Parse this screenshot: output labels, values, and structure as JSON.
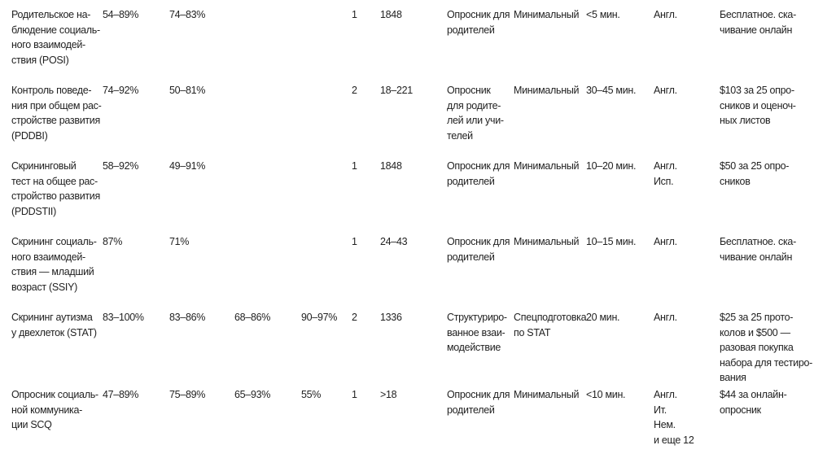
{
  "table": {
    "rows": [
      [
        [
          "Родительское на-",
          "блюдение социаль-",
          "ного взаимодей-",
          "ствия (POSI)"
        ],
        [
          "54–89%"
        ],
        [
          "74–83%"
        ],
        [],
        [],
        [
          "1"
        ],
        [
          "1848"
        ],
        [
          "Опросник для",
          "родителей"
        ],
        [
          "Минимальный"
        ],
        [
          "<5 мин."
        ],
        [
          "Англ."
        ],
        [
          "Бесплатное. ска-",
          "чивание онлайн"
        ]
      ],
      [
        [
          "Контроль поведе-",
          "ния при общем рас-",
          "стройстве развития",
          "(PDDBI)"
        ],
        [
          "74–92%"
        ],
        [
          "50–81%"
        ],
        [],
        [],
        [
          "2"
        ],
        [
          "18–221"
        ],
        [
          "Опросник",
          "для родите-",
          "лей или учи-",
          "телей"
        ],
        [
          "Минимальный"
        ],
        [
          "30–45 мин."
        ],
        [
          "Англ."
        ],
        [
          "$103 за 25 опро-",
          "сников и оценоч-",
          "ных листов"
        ]
      ],
      [
        [
          "Скрининговый",
          "тест на общее рас-",
          "стройство развития",
          "(PDDSTII)"
        ],
        [
          "58–92%"
        ],
        [
          "49–91%"
        ],
        [],
        [],
        [
          "1"
        ],
        [
          "1848"
        ],
        [
          "Опросник для",
          "родителей"
        ],
        [
          "Минимальный"
        ],
        [
          "10–20 мин."
        ],
        [
          "Англ.",
          "Исп."
        ],
        [
          "$50 за 25 опро-",
          "сников"
        ]
      ],
      [
        [
          "Скрининг социаль-",
          "ного взаимодей-",
          "ствия — младший",
          "возраст (SSIY)"
        ],
        [
          "87%"
        ],
        [
          "71%"
        ],
        [],
        [],
        [
          "1"
        ],
        [
          "24–43"
        ],
        [
          "Опросник для",
          "родителей"
        ],
        [
          "Минимальный"
        ],
        [
          "10–15 мин."
        ],
        [
          "Англ."
        ],
        [
          "Бесплатное. ска-",
          "чивание онлайн"
        ]
      ],
      [
        [
          "Скрининг аутизма",
          "у двехлеток (STAT)"
        ],
        [
          "83–100%"
        ],
        [
          "83–86%"
        ],
        [
          "68–86%"
        ],
        [
          "90–97%"
        ],
        [
          "2"
        ],
        [
          "1336"
        ],
        [
          "Структуриро-",
          "ванное взаи-",
          "модействие"
        ],
        [
          "Спецподготовка",
          "по STAT"
        ],
        [
          "20 мин."
        ],
        [
          "Англ."
        ],
        [
          "$25 за 25 прото-",
          "колов и $500 —",
          "разовая покупка",
          "набора для тестиро-",
          "вания"
        ]
      ],
      [
        [
          "Опросник социаль-",
          "ной коммуника-",
          "ции SCQ"
        ],
        [
          "47–89%"
        ],
        [
          "75–89%"
        ],
        [
          "65–93%"
        ],
        [
          "55%"
        ],
        [
          "1"
        ],
        [
          ">18"
        ],
        [
          "Опросник для",
          "родителей"
        ],
        [
          "Минимальный"
        ],
        [
          "<10 мин."
        ],
        [
          "Англ.",
          "Ит.",
          "Нем.",
          "и еще 12"
        ],
        [
          "$44 за онлайн-",
          "опросник"
        ]
      ]
    ]
  }
}
